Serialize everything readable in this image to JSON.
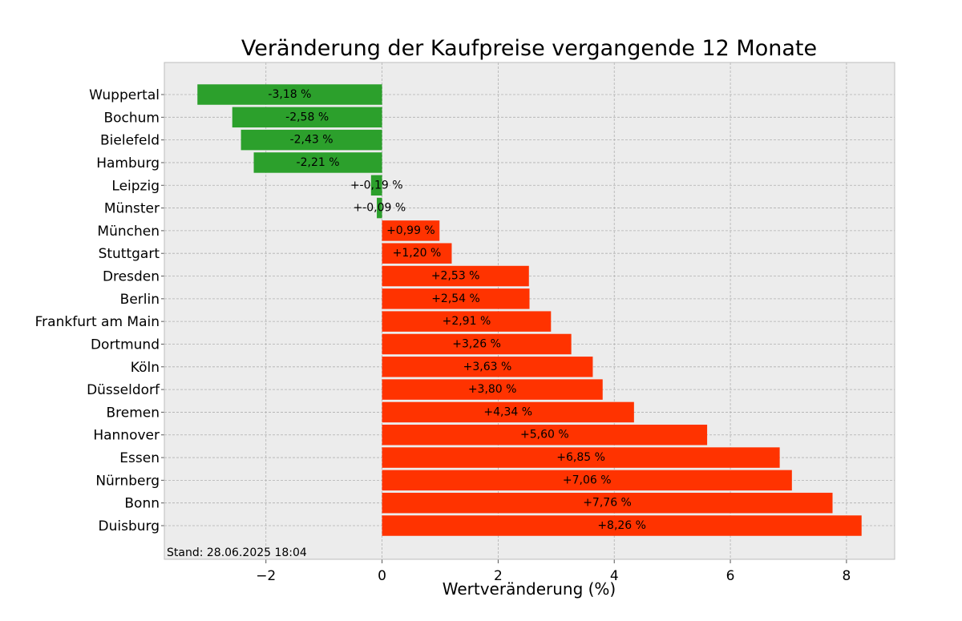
{
  "chart_data": {
    "type": "bar",
    "orientation": "horizontal",
    "title": "Veränderung der Kaufpreise vergangende 12 Monate",
    "xlabel": "Wertveränderung (%)",
    "ylabel": "",
    "xlim": [
      -3.75,
      8.83
    ],
    "xticks": [
      -2,
      0,
      2,
      4,
      6,
      8
    ],
    "xtick_labels": [
      "−2",
      "0",
      "2",
      "4",
      "6",
      "8"
    ],
    "grid": true,
    "categories": [
      "Wuppertal",
      "Bochum",
      "Bielefeld",
      "Hamburg",
      "Leipzig",
      "Münster",
      "München",
      "Stuttgart",
      "Dresden",
      "Berlin",
      "Frankfurt am Main",
      "Dortmund",
      "Köln",
      "Düsseldorf",
      "Bremen",
      "Hannover",
      "Essen",
      "Nürnberg",
      "Bonn",
      "Duisburg"
    ],
    "values": [
      -3.18,
      -2.58,
      -2.43,
      -2.21,
      -0.19,
      -0.09,
      0.99,
      1.2,
      2.53,
      2.54,
      2.91,
      3.26,
      3.63,
      3.8,
      4.34,
      5.6,
      6.85,
      7.06,
      7.76,
      8.26
    ],
    "data_labels": [
      "-3,18 %",
      "-2,58 %",
      "-2,43 %",
      "-2,21 %",
      "+-0,19 %",
      "+-0,09 %",
      "+0,99 %",
      "+1,20 %",
      "+2,53 %",
      "+2,54 %",
      "+2,91 %",
      "+3,26 %",
      "+3,63 %",
      "+3,80 %",
      "+4,34 %",
      "+5,60 %",
      "+6,85 %",
      "+7,06 %",
      "+7,76 %",
      "+8,26 %"
    ],
    "colors": {
      "negative": "#2ca02c",
      "positive": "#ff3300",
      "plot_background": "#ececec",
      "frame": "#bcbcbc"
    },
    "annotation": "Stand: 28.06.2025 18:04"
  }
}
